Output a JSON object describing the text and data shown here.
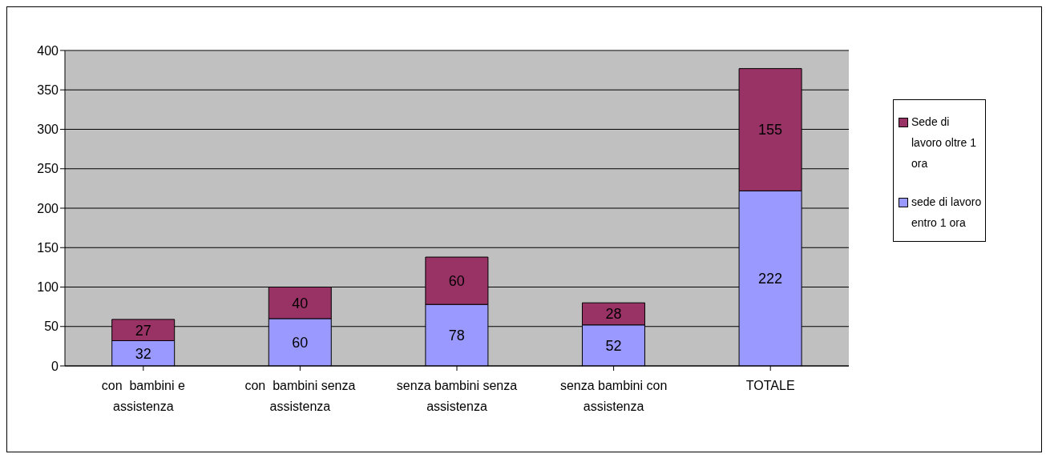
{
  "chart_data": {
    "type": "bar",
    "stacked": true,
    "categories": [
      "con  bambini e assistenza",
      "con  bambini senza assistenza",
      "senza bambini senza assistenza",
      "senza bambini con assistenza",
      "TOTALE"
    ],
    "series": [
      {
        "name": "sede di lavoro entro 1 ora",
        "color": "#9999ff",
        "values": [
          32,
          60,
          78,
          52,
          222
        ]
      },
      {
        "name": "Sede di lavoro oltre 1 ora",
        "color": "#993366",
        "values": [
          27,
          40,
          60,
          28,
          155
        ]
      }
    ],
    "ylim": [
      0,
      400
    ],
    "yticks": [
      0,
      50,
      100,
      150,
      200,
      250,
      300,
      350,
      400
    ],
    "grid": "y",
    "legend": "right",
    "data_labels": true
  }
}
